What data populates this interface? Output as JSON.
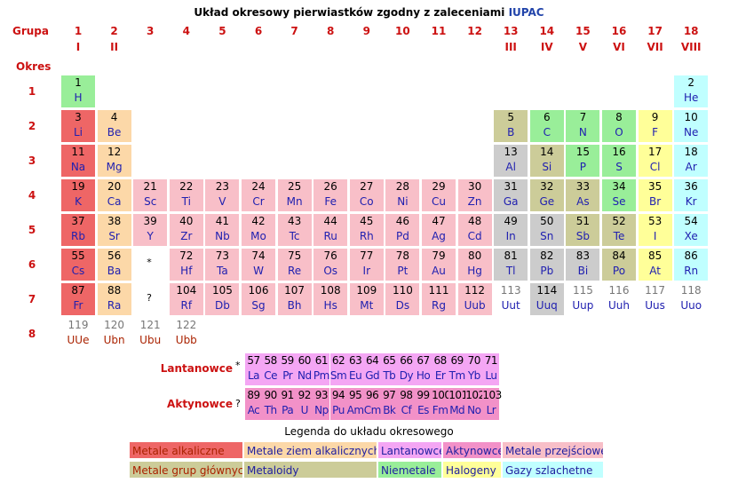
{
  "title": {
    "text": "Układ okresowy pierwiastków zgodny z zaleceniami ",
    "link": "IUPAC"
  },
  "labels": {
    "grupa": "Grupa",
    "okres": "Okres",
    "lanth": "Lantanowce",
    "act": "Aktynowce",
    "lanth_mark": "*",
    "act_mark": "?",
    "legend_title": "Legenda do układu okresowego"
  },
  "groups": [
    "1",
    "2",
    "3",
    "4",
    "5",
    "6",
    "7",
    "8",
    "9",
    "10",
    "11",
    "12",
    "13",
    "14",
    "15",
    "16",
    "17",
    "18"
  ],
  "roman": {
    "1": "I",
    "2": "II",
    "13": "III",
    "14": "IV",
    "15": "V",
    "16": "VI",
    "17": "VII",
    "18": "VIII"
  },
  "periods": [
    "1",
    "2",
    "3",
    "4",
    "5",
    "6",
    "7",
    "8"
  ],
  "colors": {
    "alkali": "#ee6666",
    "alkaline": "#fcd8a8",
    "lanth": "#f4a6f4",
    "act": "#f291c8",
    "transition": "#f8bfc8",
    "post": "#cccc99",
    "metalloid": "#cccccc",
    "nonmetal": "#99ee99",
    "halogen": "#ffff99",
    "noble": "#c0ffff",
    "none": "#ffffff"
  },
  "elements": [
    {
      "n": "1",
      "s": "H",
      "g": 1,
      "p": 1,
      "c": "nonmetal"
    },
    {
      "n": "2",
      "s": "He",
      "g": 18,
      "p": 1,
      "c": "noble"
    },
    {
      "n": "3",
      "s": "Li",
      "g": 1,
      "p": 2,
      "c": "alkali"
    },
    {
      "n": "4",
      "s": "Be",
      "g": 2,
      "p": 2,
      "c": "alkaline"
    },
    {
      "n": "5",
      "s": "B",
      "g": 13,
      "p": 2,
      "c": "post"
    },
    {
      "n": "6",
      "s": "C",
      "g": 14,
      "p": 2,
      "c": "nonmetal"
    },
    {
      "n": "7",
      "s": "N",
      "g": 15,
      "p": 2,
      "c": "nonmetal"
    },
    {
      "n": "8",
      "s": "O",
      "g": 16,
      "p": 2,
      "c": "nonmetal"
    },
    {
      "n": "9",
      "s": "F",
      "g": 17,
      "p": 2,
      "c": "halogen"
    },
    {
      "n": "10",
      "s": "Ne",
      "g": 18,
      "p": 2,
      "c": "noble"
    },
    {
      "n": "11",
      "s": "Na",
      "g": 1,
      "p": 3,
      "c": "alkali"
    },
    {
      "n": "12",
      "s": "Mg",
      "g": 2,
      "p": 3,
      "c": "alkaline"
    },
    {
      "n": "13",
      "s": "Al",
      "g": 13,
      "p": 3,
      "c": "metalloid"
    },
    {
      "n": "14",
      "s": "Si",
      "g": 14,
      "p": 3,
      "c": "post"
    },
    {
      "n": "15",
      "s": "P",
      "g": 15,
      "p": 3,
      "c": "nonmetal"
    },
    {
      "n": "16",
      "s": "S",
      "g": 16,
      "p": 3,
      "c": "nonmetal"
    },
    {
      "n": "17",
      "s": "Cl",
      "g": 17,
      "p": 3,
      "c": "halogen"
    },
    {
      "n": "18",
      "s": "Ar",
      "g": 18,
      "p": 3,
      "c": "noble"
    },
    {
      "n": "19",
      "s": "K",
      "g": 1,
      "p": 4,
      "c": "alkali"
    },
    {
      "n": "20",
      "s": "Ca",
      "g": 2,
      "p": 4,
      "c": "alkaline"
    },
    {
      "n": "21",
      "s": "Sc",
      "g": 3,
      "p": 4,
      "c": "transition"
    },
    {
      "n": "22",
      "s": "Ti",
      "g": 4,
      "p": 4,
      "c": "transition"
    },
    {
      "n": "23",
      "s": "V",
      "g": 5,
      "p": 4,
      "c": "transition"
    },
    {
      "n": "24",
      "s": "Cr",
      "g": 6,
      "p": 4,
      "c": "transition"
    },
    {
      "n": "25",
      "s": "Mn",
      "g": 7,
      "p": 4,
      "c": "transition"
    },
    {
      "n": "26",
      "s": "Fe",
      "g": 8,
      "p": 4,
      "c": "transition"
    },
    {
      "n": "27",
      "s": "Co",
      "g": 9,
      "p": 4,
      "c": "transition"
    },
    {
      "n": "28",
      "s": "Ni",
      "g": 10,
      "p": 4,
      "c": "transition"
    },
    {
      "n": "29",
      "s": "Cu",
      "g": 11,
      "p": 4,
      "c": "transition"
    },
    {
      "n": "30",
      "s": "Zn",
      "g": 12,
      "p": 4,
      "c": "transition"
    },
    {
      "n": "31",
      "s": "Ga",
      "g": 13,
      "p": 4,
      "c": "metalloid"
    },
    {
      "n": "32",
      "s": "Ge",
      "g": 14,
      "p": 4,
      "c": "post"
    },
    {
      "n": "33",
      "s": "As",
      "g": 15,
      "p": 4,
      "c": "post"
    },
    {
      "n": "34",
      "s": "Se",
      "g": 16,
      "p": 4,
      "c": "nonmetal"
    },
    {
      "n": "35",
      "s": "Br",
      "g": 17,
      "p": 4,
      "c": "halogen"
    },
    {
      "n": "36",
      "s": "Kr",
      "g": 18,
      "p": 4,
      "c": "noble"
    },
    {
      "n": "37",
      "s": "Rb",
      "g": 1,
      "p": 5,
      "c": "alkali"
    },
    {
      "n": "38",
      "s": "Sr",
      "g": 2,
      "p": 5,
      "c": "alkaline"
    },
    {
      "n": "39",
      "s": "Y",
      "g": 3,
      "p": 5,
      "c": "transition"
    },
    {
      "n": "40",
      "s": "Zr",
      "g": 4,
      "p": 5,
      "c": "transition"
    },
    {
      "n": "41",
      "s": "Nb",
      "g": 5,
      "p": 5,
      "c": "transition"
    },
    {
      "n": "42",
      "s": "Mo",
      "g": 6,
      "p": 5,
      "c": "transition"
    },
    {
      "n": "43",
      "s": "Tc",
      "g": 7,
      "p": 5,
      "c": "transition"
    },
    {
      "n": "44",
      "s": "Ru",
      "g": 8,
      "p": 5,
      "c": "transition"
    },
    {
      "n": "45",
      "s": "Rh",
      "g": 9,
      "p": 5,
      "c": "transition"
    },
    {
      "n": "46",
      "s": "Pd",
      "g": 10,
      "p": 5,
      "c": "transition"
    },
    {
      "n": "47",
      "s": "Ag",
      "g": 11,
      "p": 5,
      "c": "transition"
    },
    {
      "n": "48",
      "s": "Cd",
      "g": 12,
      "p": 5,
      "c": "transition"
    },
    {
      "n": "49",
      "s": "In",
      "g": 13,
      "p": 5,
      "c": "metalloid"
    },
    {
      "n": "50",
      "s": "Sn",
      "g": 14,
      "p": 5,
      "c": "metalloid"
    },
    {
      "n": "51",
      "s": "Sb",
      "g": 15,
      "p": 5,
      "c": "post"
    },
    {
      "n": "52",
      "s": "Te",
      "g": 16,
      "p": 5,
      "c": "post"
    },
    {
      "n": "53",
      "s": "I",
      "g": 17,
      "p": 5,
      "c": "halogen"
    },
    {
      "n": "54",
      "s": "Xe",
      "g": 18,
      "p": 5,
      "c": "noble"
    },
    {
      "n": "55",
      "s": "Cs",
      "g": 1,
      "p": 6,
      "c": "alkali"
    },
    {
      "n": "56",
      "s": "Ba",
      "g": 2,
      "p": 6,
      "c": "alkaline"
    },
    {
      "n": "72",
      "s": "Hf",
      "g": 4,
      "p": 6,
      "c": "transition"
    },
    {
      "n": "73",
      "s": "Ta",
      "g": 5,
      "p": 6,
      "c": "transition"
    },
    {
      "n": "74",
      "s": "W",
      "g": 6,
      "p": 6,
      "c": "transition"
    },
    {
      "n": "75",
      "s": "Re",
      "g": 7,
      "p": 6,
      "c": "transition"
    },
    {
      "n": "76",
      "s": "Os",
      "g": 8,
      "p": 6,
      "c": "transition"
    },
    {
      "n": "77",
      "s": "Ir",
      "g": 9,
      "p": 6,
      "c": "transition"
    },
    {
      "n": "78",
      "s": "Pt",
      "g": 10,
      "p": 6,
      "c": "transition"
    },
    {
      "n": "79",
      "s": "Au",
      "g": 11,
      "p": 6,
      "c": "transition"
    },
    {
      "n": "80",
      "s": "Hg",
      "g": 12,
      "p": 6,
      "c": "transition"
    },
    {
      "n": "81",
      "s": "Tl",
      "g": 13,
      "p": 6,
      "c": "metalloid"
    },
    {
      "n": "82",
      "s": "Pb",
      "g": 14,
      "p": 6,
      "c": "metalloid"
    },
    {
      "n": "83",
      "s": "Bi",
      "g": 15,
      "p": 6,
      "c": "metalloid"
    },
    {
      "n": "84",
      "s": "Po",
      "g": 16,
      "p": 6,
      "c": "post"
    },
    {
      "n": "85",
      "s": "At",
      "g": 17,
      "p": 6,
      "c": "halogen"
    },
    {
      "n": "86",
      "s": "Rn",
      "g": 18,
      "p": 6,
      "c": "noble"
    },
    {
      "n": "87",
      "s": "Fr",
      "g": 1,
      "p": 7,
      "c": "alkali"
    },
    {
      "n": "88",
      "s": "Ra",
      "g": 2,
      "p": 7,
      "c": "alkaline"
    },
    {
      "n": "104",
      "s": "Rf",
      "g": 4,
      "p": 7,
      "c": "transition"
    },
    {
      "n": "105",
      "s": "Db",
      "g": 5,
      "p": 7,
      "c": "transition"
    },
    {
      "n": "106",
      "s": "Sg",
      "g": 6,
      "p": 7,
      "c": "transition"
    },
    {
      "n": "107",
      "s": "Bh",
      "g": 7,
      "p": 7,
      "c": "transition"
    },
    {
      "n": "108",
      "s": "Hs",
      "g": 8,
      "p": 7,
      "c": "transition"
    },
    {
      "n": "109",
      "s": "Mt",
      "g": 9,
      "p": 7,
      "c": "transition"
    },
    {
      "n": "110",
      "s": "Ds",
      "g": 10,
      "p": 7,
      "c": "transition"
    },
    {
      "n": "111",
      "s": "Rg",
      "g": 11,
      "p": 7,
      "c": "transition"
    },
    {
      "n": "112",
      "s": "Uub",
      "g": 12,
      "p": 7,
      "c": "transition"
    },
    {
      "n": "113",
      "s": "Uut",
      "g": 13,
      "p": 7,
      "c": "none",
      "ghost": true
    },
    {
      "n": "114",
      "s": "Uuq",
      "g": 14,
      "p": 7,
      "c": "metalloid"
    },
    {
      "n": "115",
      "s": "Uup",
      "g": 15,
      "p": 7,
      "c": "none",
      "ghost": true
    },
    {
      "n": "116",
      "s": "Uuh",
      "g": 16,
      "p": 7,
      "c": "none",
      "ghost": true
    },
    {
      "n": "117",
      "s": "Uus",
      "g": 17,
      "p": 7,
      "c": "none",
      "ghost": true
    },
    {
      "n": "118",
      "s": "Uuo",
      "g": 18,
      "p": 7,
      "c": "none",
      "ghost": true
    },
    {
      "n": "119",
      "s": "UUe",
      "g": 1,
      "p": 8,
      "c": "none",
      "ghost": true,
      "unk": true
    },
    {
      "n": "120",
      "s": "Ubn",
      "g": 2,
      "p": 8,
      "c": "none",
      "ghost": true,
      "unk": true
    },
    {
      "n": "121",
      "s": "Ubu",
      "g": 3,
      "p": 8,
      "c": "none",
      "ghost": true,
      "unk": true
    },
    {
      "n": "122",
      "s": "Ubb",
      "g": 4,
      "p": 8,
      "c": "none",
      "ghost": true,
      "unk": true
    }
  ],
  "lanthanides": [
    [
      "57",
      "La"
    ],
    [
      "58",
      "Ce"
    ],
    [
      "59",
      "Pr"
    ],
    [
      "60",
      "Nd"
    ],
    [
      "61",
      "Pm"
    ],
    [
      "62",
      "Sm"
    ],
    [
      "63",
      "Eu"
    ],
    [
      "64",
      "Gd"
    ],
    [
      "65",
      "Tb"
    ],
    [
      "66",
      "Dy"
    ],
    [
      "67",
      "Ho"
    ],
    [
      "68",
      "Er"
    ],
    [
      "69",
      "Tm"
    ],
    [
      "70",
      "Yb"
    ],
    [
      "71",
      "Lu"
    ]
  ],
  "actinides": [
    [
      "89",
      "Ac"
    ],
    [
      "90",
      "Th"
    ],
    [
      "91",
      "Pa"
    ],
    [
      "92",
      "U"
    ],
    [
      "93",
      "Np"
    ],
    [
      "94",
      "Pu"
    ],
    [
      "95",
      "Am"
    ],
    [
      "96",
      "Cm"
    ],
    [
      "97",
      "Bk"
    ],
    [
      "98",
      "Cf"
    ],
    [
      "99",
      "Es"
    ],
    [
      "100",
      "Fm"
    ],
    [
      "101",
      "Md"
    ],
    [
      "102",
      "No"
    ],
    [
      "103",
      "Lr"
    ]
  ],
  "legend": [
    [
      {
        "label": "Metale alkaliczne",
        "c": "alkali"
      },
      {
        "label": "Metale ziem alkalicznych",
        "c": "alkaline"
      },
      {
        "label": "Lantanowce",
        "c": "lanth"
      },
      {
        "label": "Aktynowce",
        "c": "act"
      },
      {
        "label": "Metale przejściowe",
        "c": "transition"
      }
    ],
    [
      {
        "label": "Metale grup głównych",
        "c": "post"
      },
      {
        "label": "Metaloidy",
        "c": "post"
      },
      {
        "label": "Niemetale",
        "c": "nonmetal"
      },
      {
        "label": "Halogeny",
        "c": "halogen"
      },
      {
        "label": "Gazy szlachetne",
        "c": "noble"
      }
    ]
  ]
}
